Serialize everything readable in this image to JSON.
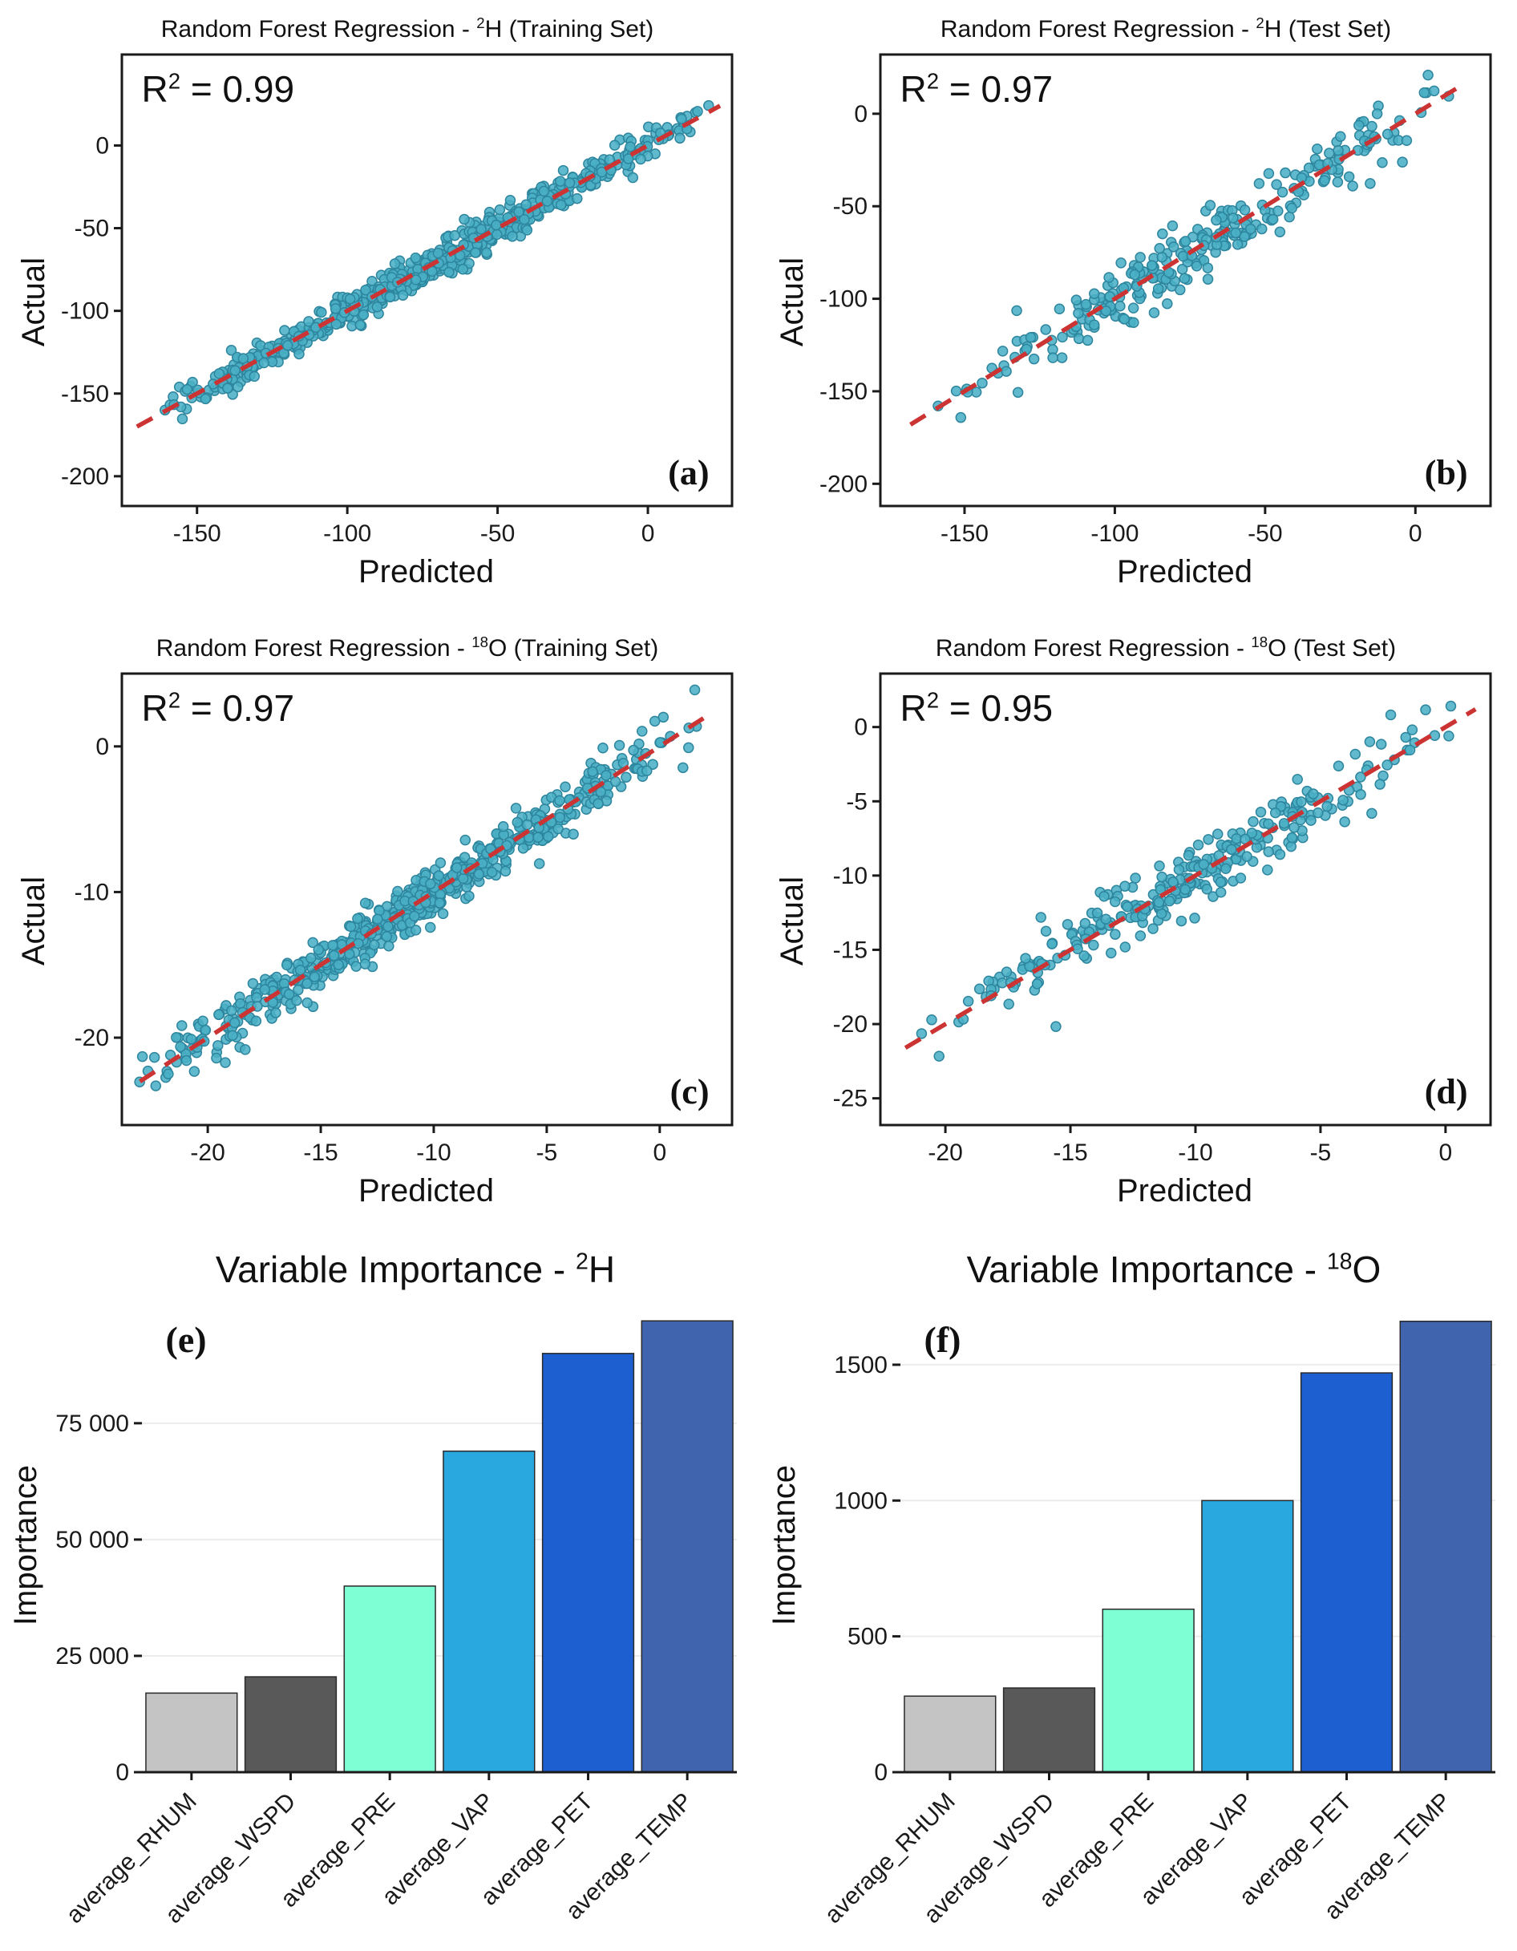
{
  "panels": [
    {
      "id": "a",
      "title": {
        "prefix": "Random Forest Regression - ",
        "sup": "2",
        "element": "H",
        "suffix": " (Training Set)"
      },
      "r2": {
        "base": "R",
        "sup": "2",
        "rest": " = 0.99"
      },
      "letter": "(a)",
      "xlabel": "Predicted",
      "ylabel": "Actual"
    },
    {
      "id": "b",
      "title": {
        "prefix": "Random Forest Regression - ",
        "sup": "2",
        "element": "H",
        "suffix": " (Test Set)"
      },
      "r2": {
        "base": "R",
        "sup": "2",
        "rest": " = 0.97"
      },
      "letter": "(b)",
      "xlabel": "Predicted",
      "ylabel": "Actual"
    },
    {
      "id": "c",
      "title": {
        "prefix": "Random Forest Regression - ",
        "sup": "18",
        "element": "O",
        "suffix": " (Training Set)"
      },
      "r2": {
        "base": "R",
        "sup": "2",
        "rest": " = 0.97"
      },
      "letter": "(c)",
      "xlabel": "Predicted",
      "ylabel": "Actual"
    },
    {
      "id": "d",
      "title": {
        "prefix": "Random Forest Regression - ",
        "sup": "18",
        "element": "O",
        "suffix": " (Test Set)"
      },
      "r2": {
        "base": "R",
        "sup": "2",
        "rest": " = 0.95"
      },
      "letter": "(d)",
      "xlabel": "Predicted",
      "ylabel": "Actual"
    },
    {
      "id": "e",
      "title": {
        "prefix": "Variable Importance - ",
        "sup": "2",
        "element": "H",
        "suffix": ""
      },
      "letter": "(e)",
      "ylabel": "Importance"
    },
    {
      "id": "f",
      "title": {
        "prefix": "Variable Importance - ",
        "sup": "18",
        "element": "O",
        "suffix": ""
      },
      "letter": "(f)",
      "ylabel": "Importance"
    }
  ],
  "chart_data": [
    {
      "type": "scatter",
      "panel": "a",
      "title": "Random Forest Regression - ²H (Training Set)",
      "r_squared": 0.99,
      "xlabel": "Predicted",
      "ylabel": "Actual",
      "xlim": [
        -175,
        28
      ],
      "ylim": [
        -218,
        55
      ],
      "xticks": [
        -150,
        -100,
        -50,
        0
      ],
      "yticks": [
        0,
        -50,
        -100,
        -150,
        -200
      ],
      "identity_line": {
        "relation": "y = x",
        "style": "dashed",
        "color": "#cc3333",
        "x_span": [
          -170,
          24
        ]
      },
      "point_style": {
        "fill": "#4aafc5",
        "stroke": "#2d869e",
        "radius": 6,
        "opacity": 0.88
      },
      "points_spec": {
        "n": 650,
        "x_range": [
          -163,
          22
        ],
        "noise_sd": 5.5,
        "seed": 11,
        "distribution": "triangular-about-midrange",
        "relation": "y ≈ x (points tightly along 1:1 line)"
      }
    },
    {
      "type": "scatter",
      "panel": "b",
      "title": "Random Forest Regression - ²H (Test Set)",
      "r_squared": 0.97,
      "xlabel": "Predicted",
      "ylabel": "Actual",
      "xlim": [
        -178,
        25
      ],
      "ylim": [
        -212,
        32
      ],
      "xticks": [
        -150,
        -100,
        -50,
        0
      ],
      "yticks": [
        0,
        -50,
        -100,
        -150,
        -200
      ],
      "identity_line": {
        "relation": "y = x",
        "style": "dashed",
        "color": "#cc3333",
        "x_span": [
          -168,
          16
        ]
      },
      "point_style": {
        "fill": "#4aafc5",
        "stroke": "#2d869e",
        "radius": 6,
        "opacity": 0.88
      },
      "points_spec": {
        "n": 280,
        "x_range": [
          -163,
          14
        ],
        "noise_sd": 8,
        "seed": 23,
        "distribution": "triangular-about-midrange",
        "relation": "y ≈ x with wider spread"
      }
    },
    {
      "type": "scatter",
      "panel": "c",
      "title": "Random Forest Regression - ¹⁸O (Training Set)",
      "r_squared": 0.97,
      "xlabel": "Predicted",
      "ylabel": "Actual",
      "xlim": [
        -23.8,
        3.2
      ],
      "ylim": [
        -26,
        5
      ],
      "xticks": [
        -20,
        -15,
        -10,
        -5,
        0
      ],
      "yticks": [
        0,
        -10,
        -20
      ],
      "identity_line": {
        "relation": "y = x",
        "style": "dashed",
        "color": "#cc3333",
        "x_span": [
          -23,
          2.2
        ]
      },
      "point_style": {
        "fill": "#4aafc5",
        "stroke": "#2d869e",
        "radius": 6,
        "opacity": 0.88
      },
      "points_spec": {
        "n": 650,
        "x_range": [
          -23.3,
          2
        ],
        "noise_sd": 0.85,
        "seed": 37,
        "distribution": "triangular-about-midrange",
        "relation": "y ≈ x"
      }
    },
    {
      "type": "scatter",
      "panel": "d",
      "title": "Random Forest Regression - ¹⁸O (Test Set)",
      "r_squared": 0.95,
      "xlabel": "Predicted",
      "ylabel": "Actual",
      "xlim": [
        -22.6,
        1.8
      ],
      "ylim": [
        -26.8,
        3.6
      ],
      "xticks": [
        -20,
        -15,
        -10,
        -5,
        0
      ],
      "yticks": [
        0,
        -5,
        -10,
        -15,
        -20,
        -25
      ],
      "identity_line": {
        "relation": "y = x",
        "style": "dashed",
        "color": "#cc3333",
        "x_span": [
          -21.6,
          1.2
        ]
      },
      "point_style": {
        "fill": "#4aafc5",
        "stroke": "#2d869e",
        "radius": 6,
        "opacity": 0.88
      },
      "points_spec": {
        "n": 280,
        "x_range": [
          -21.2,
          1
        ],
        "noise_sd": 1.05,
        "seed": 51,
        "distribution": "triangular-about-midrange",
        "relation": "y ≈ x with wider spread"
      }
    },
    {
      "type": "bar",
      "panel": "e",
      "title": "Variable Importance - ²H",
      "ylabel": "Importance",
      "categories": [
        "average_RHUM",
        "average_WSPD",
        "average_PRE",
        "average_VAP",
        "average_PET",
        "average_TEMP"
      ],
      "values": [
        17000,
        20500,
        40000,
        69000,
        90000,
        97000
      ],
      "ylim": [
        0,
        101000
      ],
      "yticks": [
        0,
        25000,
        50000,
        75000
      ],
      "ytick_labels": [
        "0",
        "25 000",
        "50 000",
        "75 000"
      ],
      "bar_colors": [
        "#c4c4c4",
        "#595959",
        "#7fffd4",
        "#29a8e0",
        "#1d5fd0",
        "#4064ae"
      ],
      "grid": "faint-horizontal",
      "legend": "none"
    },
    {
      "type": "bar",
      "panel": "f",
      "title": "Variable Importance - ¹⁸O",
      "ylabel": "Importance",
      "categories": [
        "average_RHUM",
        "average_WSPD",
        "average_PRE",
        "average_VAP",
        "average_PET",
        "average_TEMP"
      ],
      "values": [
        280,
        310,
        600,
        1000,
        1470,
        1660
      ],
      "ylim": [
        0,
        1730
      ],
      "yticks": [
        0,
        500,
        1000,
        1500
      ],
      "ytick_labels": [
        "0",
        "500",
        "1000",
        "1500"
      ],
      "bar_colors": [
        "#c4c4c4",
        "#595959",
        "#7fffd4",
        "#29a8e0",
        "#1d5fd0",
        "#4064ae"
      ],
      "grid": "faint-horizontal",
      "legend": "none"
    }
  ]
}
